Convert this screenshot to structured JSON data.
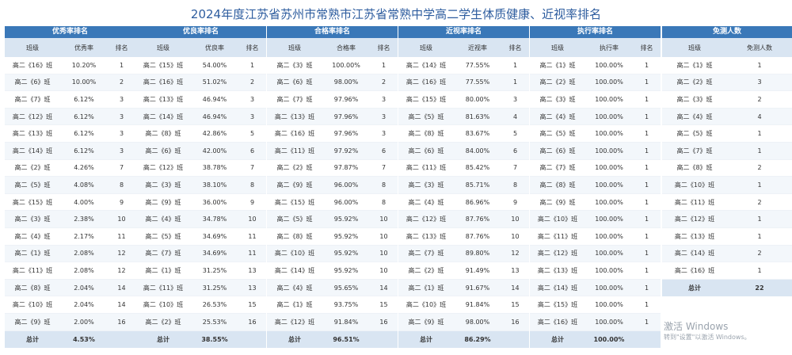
{
  "title": "2024年度江苏省苏州市常熟市江苏省常熟中学高二学生体质健康、近视率排名",
  "tables": [
    {
      "header": "优秀率排名",
      "columns": [
        "班级",
        "优秀率",
        "排名"
      ],
      "rows": [
        [
          "高二《16》班",
          "10.20%",
          "1"
        ],
        [
          "高二《6》班",
          "10.00%",
          "2"
        ],
        [
          "高二《7》班",
          "6.12%",
          "3"
        ],
        [
          "高二《12》班",
          "6.12%",
          "3"
        ],
        [
          "高二《13》班",
          "6.12%",
          "3"
        ],
        [
          "高二《14》班",
          "6.12%",
          "3"
        ],
        [
          "高二《2》班",
          "4.26%",
          "7"
        ],
        [
          "高二《5》班",
          "4.08%",
          "8"
        ],
        [
          "高二《15》班",
          "4.00%",
          "9"
        ],
        [
          "高二《3》班",
          "2.38%",
          "10"
        ],
        [
          "高二《4》班",
          "2.17%",
          "11"
        ],
        [
          "高二《1》班",
          "2.08%",
          "12"
        ],
        [
          "高二《11》班",
          "2.08%",
          "12"
        ],
        [
          "高二《8》班",
          "2.04%",
          "14"
        ],
        [
          "高二《10》班",
          "2.04%",
          "14"
        ],
        [
          "高二《9》班",
          "2.00%",
          "16"
        ]
      ],
      "total_label": "总计",
      "total_value": "4.53%"
    },
    {
      "header": "优良率排名",
      "columns": [
        "班级",
        "优良率",
        "排名"
      ],
      "rows": [
        [
          "高二《15》班",
          "54.00%",
          "1"
        ],
        [
          "高二《16》班",
          "51.02%",
          "2"
        ],
        [
          "高二《13》班",
          "46.94%",
          "3"
        ],
        [
          "高二《14》班",
          "46.94%",
          "3"
        ],
        [
          "高二《8》班",
          "42.86%",
          "5"
        ],
        [
          "高二《6》班",
          "42.00%",
          "6"
        ],
        [
          "高二《12》班",
          "38.78%",
          "7"
        ],
        [
          "高二《3》班",
          "38.10%",
          "8"
        ],
        [
          "高二《9》班",
          "36.00%",
          "9"
        ],
        [
          "高二《4》班",
          "34.78%",
          "10"
        ],
        [
          "高二《5》班",
          "34.69%",
          "11"
        ],
        [
          "高二《7》班",
          "34.69%",
          "11"
        ],
        [
          "高二《1》班",
          "31.25%",
          "13"
        ],
        [
          "高二《11》班",
          "31.25%",
          "13"
        ],
        [
          "高二《10》班",
          "26.53%",
          "15"
        ],
        [
          "高二《2》班",
          "25.53%",
          "16"
        ]
      ],
      "total_label": "总计",
      "total_value": "38.55%"
    },
    {
      "header": "合格率排名",
      "columns": [
        "班级",
        "合格率",
        "排名"
      ],
      "rows": [
        [
          "高二《3》班",
          "100.00%",
          "1"
        ],
        [
          "高二《6》班",
          "98.00%",
          "2"
        ],
        [
          "高二《7》班",
          "97.96%",
          "3"
        ],
        [
          "高二《13》班",
          "97.96%",
          "3"
        ],
        [
          "高二《16》班",
          "97.96%",
          "3"
        ],
        [
          "高二《11》班",
          "97.92%",
          "6"
        ],
        [
          "高二《2》班",
          "97.87%",
          "7"
        ],
        [
          "高二《9》班",
          "96.00%",
          "8"
        ],
        [
          "高二《15》班",
          "96.00%",
          "8"
        ],
        [
          "高二《5》班",
          "95.92%",
          "10"
        ],
        [
          "高二《8》班",
          "95.92%",
          "10"
        ],
        [
          "高二《10》班",
          "95.92%",
          "10"
        ],
        [
          "高二《14》班",
          "95.92%",
          "10"
        ],
        [
          "高二《4》班",
          "95.65%",
          "14"
        ],
        [
          "高二《1》班",
          "93.75%",
          "15"
        ],
        [
          "高二《12》班",
          "91.84%",
          "16"
        ]
      ],
      "total_label": "总计",
      "total_value": "96.51%"
    },
    {
      "header": "近视率排名",
      "columns": [
        "班级",
        "近视率",
        "排名"
      ],
      "rows": [
        [
          "高二《14》班",
          "77.55%",
          "1"
        ],
        [
          "高二《16》班",
          "77.55%",
          "1"
        ],
        [
          "高二《15》班",
          "80.00%",
          "3"
        ],
        [
          "高二《5》班",
          "81.63%",
          "4"
        ],
        [
          "高二《8》班",
          "83.67%",
          "5"
        ],
        [
          "高二《6》班",
          "84.00%",
          "6"
        ],
        [
          "高二《11》班",
          "85.42%",
          "7"
        ],
        [
          "高二《3》班",
          "85.71%",
          "8"
        ],
        [
          "高二《4》班",
          "86.96%",
          "9"
        ],
        [
          "高二《12》班",
          "87.76%",
          "10"
        ],
        [
          "高二《13》班",
          "87.76%",
          "10"
        ],
        [
          "高二《7》班",
          "89.80%",
          "12"
        ],
        [
          "高二《2》班",
          "91.49%",
          "13"
        ],
        [
          "高二《1》班",
          "91.67%",
          "14"
        ],
        [
          "高二《10》班",
          "91.84%",
          "15"
        ],
        [
          "高二《9》班",
          "98.00%",
          "16"
        ]
      ],
      "total_label": "总计",
      "total_value": "86.29%"
    },
    {
      "header": "执行率排名",
      "columns": [
        "班级",
        "执行率",
        "排名"
      ],
      "rows": [
        [
          "高二《1》班",
          "100.00%",
          "1"
        ],
        [
          "高二《2》班",
          "100.00%",
          "1"
        ],
        [
          "高二《3》班",
          "100.00%",
          "1"
        ],
        [
          "高二《4》班",
          "100.00%",
          "1"
        ],
        [
          "高二《5》班",
          "100.00%",
          "1"
        ],
        [
          "高二《6》班",
          "100.00%",
          "1"
        ],
        [
          "高二《7》班",
          "100.00%",
          "1"
        ],
        [
          "高二《8》班",
          "100.00%",
          "1"
        ],
        [
          "高二《9》班",
          "100.00%",
          "1"
        ],
        [
          "高二《10》班",
          "100.00%",
          "1"
        ],
        [
          "高二《11》班",
          "100.00%",
          "1"
        ],
        [
          "高二《12》班",
          "100.00%",
          "1"
        ],
        [
          "高二《13》班",
          "100.00%",
          "1"
        ],
        [
          "高二《14》班",
          "100.00%",
          "1"
        ],
        [
          "高二《15》班",
          "100.00%",
          "1"
        ],
        [
          "高二《16》班",
          "100.00%",
          "1"
        ]
      ],
      "total_label": "总计",
      "total_value": "100.00%"
    }
  ],
  "exempt": {
    "header": "免测人数",
    "columns": [
      "班级",
      "免测人数"
    ],
    "rows": [
      [
        "高二《1》班",
        "1"
      ],
      [
        "高二《2》班",
        "3"
      ],
      [
        "高二《3》班",
        "2"
      ],
      [
        "高二《4》班",
        "4"
      ],
      [
        "高二《5》班",
        "1"
      ],
      [
        "高二《7》班",
        "1"
      ],
      [
        "高二《8》班",
        "2"
      ],
      [
        "高二《10》班",
        "1"
      ],
      [
        "高二《11》班",
        "2"
      ],
      [
        "高二《12》班",
        "1"
      ],
      [
        "高二《13》班",
        "1"
      ],
      [
        "高二《14》班",
        "2"
      ],
      [
        "高二《16》班",
        "1"
      ]
    ],
    "total_label": "总计",
    "total_value": "22"
  },
  "watermark": {
    "line1": "激活 Windows",
    "line2": "转到\"设置\"以激活 Windows。"
  }
}
